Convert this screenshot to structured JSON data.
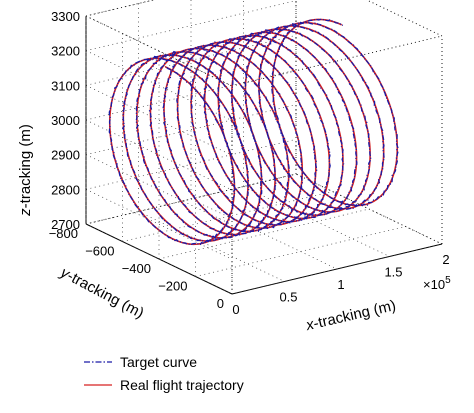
{
  "chart_data": {
    "type": "line",
    "projection": "3d",
    "xlabel_var": "x",
    "xlabel_rest": "-tracking (m)",
    "ylabel_var": "y",
    "ylabel_rest": "-tracking (m)",
    "zlabel_var": "z",
    "zlabel_rest": "-tracking (m)",
    "x_exponent_base": "×10",
    "x_exponent_power": "5",
    "xlim": [
      0,
      2
    ],
    "ylim": [
      -800,
      0
    ],
    "zlim": [
      2700,
      3300
    ],
    "x_ticks": [
      "0",
      "0.5",
      "1",
      "1.5",
      "2"
    ],
    "x_tick_values": [
      0,
      0.5,
      1,
      1.5,
      2
    ],
    "y_ticks": [
      "−800",
      "−600",
      "−400",
      "−200",
      "0"
    ],
    "y_tick_values": [
      -800,
      -600,
      -400,
      -200,
      0
    ],
    "z_ticks": [
      "2700",
      "2800",
      "2900",
      "3000",
      "3100",
      "3200",
      "3300"
    ],
    "z_tick_values": [
      2700,
      2800,
      2900,
      3000,
      3100,
      3200,
      3300
    ],
    "grid": true,
    "legend_position": "bottom-left, below plot",
    "helix": {
      "x_start": 0.06,
      "x_end": 1.74,
      "turns": 13,
      "y_center": -400,
      "y_radius": 360,
      "z_center": 3000,
      "z_radius": 250
    },
    "series": [
      {
        "name": "Target curve",
        "style": "dash-dot",
        "color": "#1a1aa6"
      },
      {
        "name": "Real flight trajectory",
        "style": "solid",
        "color": "#d62020"
      }
    ]
  }
}
